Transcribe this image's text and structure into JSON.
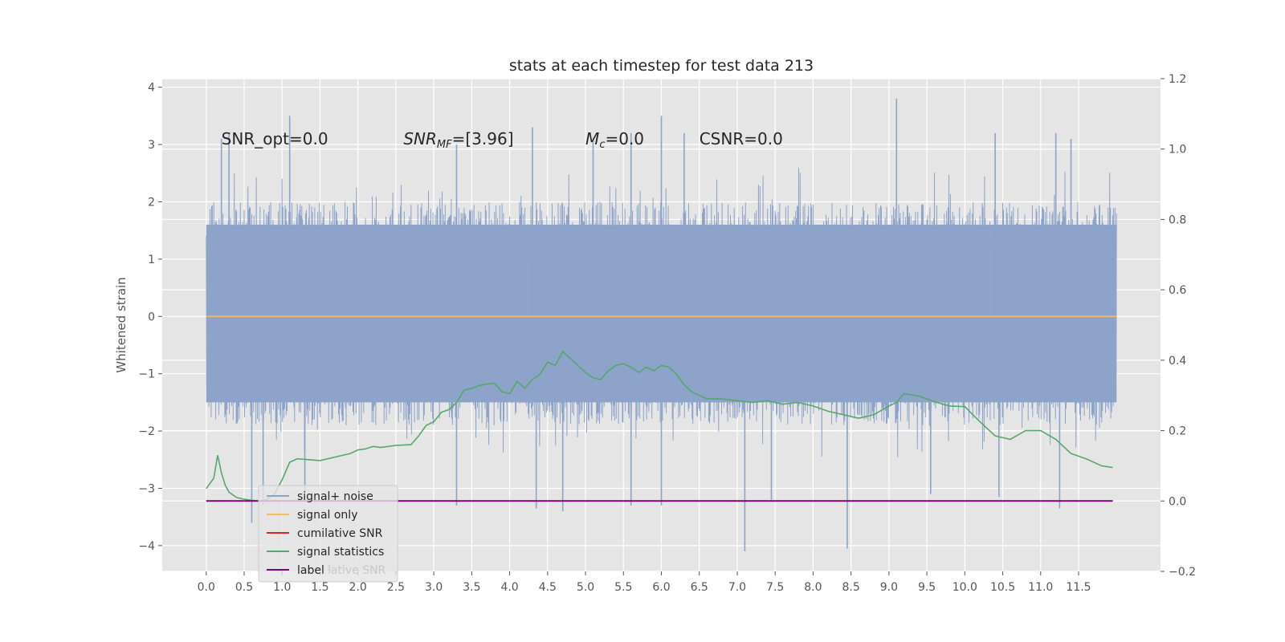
{
  "chart_data": {
    "type": "line",
    "title": "stats at each timestep for test data 213",
    "ylabel": "Whitened strain",
    "xlim": [
      -0.58,
      12.58
    ],
    "ylim": [
      -4.45,
      4.15
    ],
    "y2lim": [
      -0.2,
      1.2
    ],
    "x_ticks": [
      0.0,
      0.5,
      1.0,
      1.5,
      2.0,
      2.5,
      3.0,
      3.5,
      4.0,
      4.5,
      5.0,
      5.5,
      6.0,
      6.5,
      7.0,
      7.5,
      8.0,
      8.5,
      9.0,
      9.5,
      10.0,
      10.5,
      11.0,
      11.5
    ],
    "x_tick_labels": [
      "0.0",
      "0.5",
      "1.0",
      "1.5",
      "2.0",
      "2.5",
      "3.0",
      "3.5",
      "4.0",
      "4.5",
      "5.0",
      "5.5",
      "6.0",
      "6.5",
      "7.0",
      "7.5",
      "8.0",
      "8.5",
      "9.0",
      "9.5",
      "10.0",
      "10.5",
      "11.0",
      "11.5"
    ],
    "y_ticks": [
      -4,
      -3,
      -2,
      -1,
      0,
      1,
      2,
      3,
      4
    ],
    "y_tick_labels": [
      "−4",
      "−3",
      "−2",
      "−1",
      "0",
      "1",
      "2",
      "3",
      "4"
    ],
    "y2_ticks": [
      -0.2,
      0.0,
      0.2,
      0.4,
      0.6,
      0.8,
      1.0,
      1.2
    ],
    "y2_tick_labels": [
      "−0.2",
      "0.0",
      "0.2",
      "0.4",
      "0.6",
      "0.8",
      "1.0",
      "1.2"
    ],
    "grid": true,
    "legend_position": "lower-left",
    "annotations": [
      {
        "text": "SNR_opt=0.0",
        "x": 0.2,
        "y": 3.0
      },
      {
        "text": "SNR",
        "sub": "MF",
        "rest": "=[3.96]",
        "italic": true,
        "x": 2.6,
        "y": 3.0
      },
      {
        "text": "M",
        "sub": "c",
        "rest": "=0.0",
        "italic": true,
        "x": 5.0,
        "y": 3.0
      },
      {
        "text": "CSNR=0.0",
        "x": 6.5,
        "y": 3.0
      }
    ],
    "series": [
      {
        "name": "signal+ noise",
        "color": "#8da3c9",
        "axis": "left",
        "style": "noise",
        "x_range": [
          0.0,
          12.0
        ],
        "envelope_upper": 2.0,
        "envelope_lower": -1.9,
        "spikes": [
          {
            "x": 0.2,
            "y": 3.1
          },
          {
            "x": 0.3,
            "y": 3.2
          },
          {
            "x": 1.1,
            "y": 3.5
          },
          {
            "x": 3.3,
            "y": 3.0
          },
          {
            "x": 4.3,
            "y": 3.3
          },
          {
            "x": 5.1,
            "y": 3.1
          },
          {
            "x": 5.6,
            "y": 3.2
          },
          {
            "x": 6.0,
            "y": 3.5
          },
          {
            "x": 6.3,
            "y": 3.2
          },
          {
            "x": 9.1,
            "y": 3.8
          },
          {
            "x": 10.4,
            "y": 3.2
          },
          {
            "x": 11.2,
            "y": 3.2
          },
          {
            "x": 11.4,
            "y": 3.1
          },
          {
            "x": 0.6,
            "y": -3.6
          },
          {
            "x": 0.75,
            "y": -3.3
          },
          {
            "x": 1.3,
            "y": -3.1
          },
          {
            "x": 3.3,
            "y": -3.3
          },
          {
            "x": 4.35,
            "y": -3.35
          },
          {
            "x": 4.7,
            "y": -3.4
          },
          {
            "x": 5.6,
            "y": -3.3
          },
          {
            "x": 6.0,
            "y": -3.3
          },
          {
            "x": 7.1,
            "y": -4.1
          },
          {
            "x": 7.45,
            "y": -3.2
          },
          {
            "x": 8.45,
            "y": -4.05
          },
          {
            "x": 9.55,
            "y": -3.1
          },
          {
            "x": 10.45,
            "y": -3.15
          },
          {
            "x": 11.25,
            "y": -3.35
          }
        ]
      },
      {
        "name": "signal only",
        "color": "#f0c05a",
        "axis": "left",
        "x": [
          0.0,
          12.0
        ],
        "y": [
          0.0,
          0.0
        ]
      },
      {
        "name": "cumilative SNR",
        "color": "#d62728",
        "axis": "right",
        "x": [],
        "y": []
      },
      {
        "name": "signal statistics",
        "color": "#55a868",
        "axis": "right",
        "x": [
          0.0,
          0.1,
          0.15,
          0.2,
          0.25,
          0.3,
          0.4,
          0.5,
          0.6,
          0.7,
          0.8,
          0.9,
          1.0,
          1.1,
          1.2,
          1.5,
          1.7,
          1.9,
          2.0,
          2.1,
          2.2,
          2.3,
          2.5,
          2.7,
          2.8,
          2.9,
          3.0,
          3.1,
          3.2,
          3.3,
          3.4,
          3.5,
          3.6,
          3.7,
          3.8,
          3.9,
          4.0,
          4.1,
          4.2,
          4.3,
          4.4,
          4.5,
          4.6,
          4.7,
          4.8,
          4.9,
          5.0,
          5.1,
          5.2,
          5.3,
          5.4,
          5.5,
          5.6,
          5.7,
          5.8,
          5.9,
          6.0,
          6.1,
          6.2,
          6.3,
          6.4,
          6.5,
          6.6,
          6.8,
          7.0,
          7.2,
          7.4,
          7.6,
          7.8,
          8.0,
          8.2,
          8.4,
          8.6,
          8.8,
          9.0,
          9.1,
          9.2,
          9.4,
          9.6,
          9.8,
          10.0,
          10.2,
          10.4,
          10.6,
          10.8,
          11.0,
          11.2,
          11.4,
          11.6,
          11.8,
          11.95
        ],
        "y": [
          0.035,
          0.065,
          0.13,
          0.08,
          0.045,
          0.025,
          0.01,
          0.005,
          0.002,
          0.0,
          0.005,
          0.02,
          0.06,
          0.11,
          0.12,
          0.115,
          0.125,
          0.135,
          0.145,
          0.148,
          0.155,
          0.152,
          0.158,
          0.16,
          0.185,
          0.215,
          0.225,
          0.252,
          0.26,
          0.28,
          0.315,
          0.32,
          0.328,
          0.332,
          0.335,
          0.31,
          0.305,
          0.34,
          0.32,
          0.345,
          0.36,
          0.395,
          0.385,
          0.425,
          0.405,
          0.385,
          0.365,
          0.35,
          0.345,
          0.37,
          0.385,
          0.39,
          0.38,
          0.365,
          0.38,
          0.37,
          0.385,
          0.38,
          0.36,
          0.33,
          0.31,
          0.3,
          0.29,
          0.29,
          0.285,
          0.28,
          0.285,
          0.275,
          0.28,
          0.27,
          0.255,
          0.245,
          0.235,
          0.245,
          0.27,
          0.28,
          0.305,
          0.298,
          0.282,
          0.27,
          0.268,
          0.225,
          0.185,
          0.175,
          0.2,
          0.2,
          0.175,
          0.135,
          0.12,
          0.1,
          0.095
        ]
      },
      {
        "name": "label",
        "color": "#800080",
        "axis": "right",
        "x": [
          0.0,
          11.95
        ],
        "y": [
          0.0,
          0.0
        ]
      }
    ],
    "legend_faded_text": "lative SNR"
  }
}
